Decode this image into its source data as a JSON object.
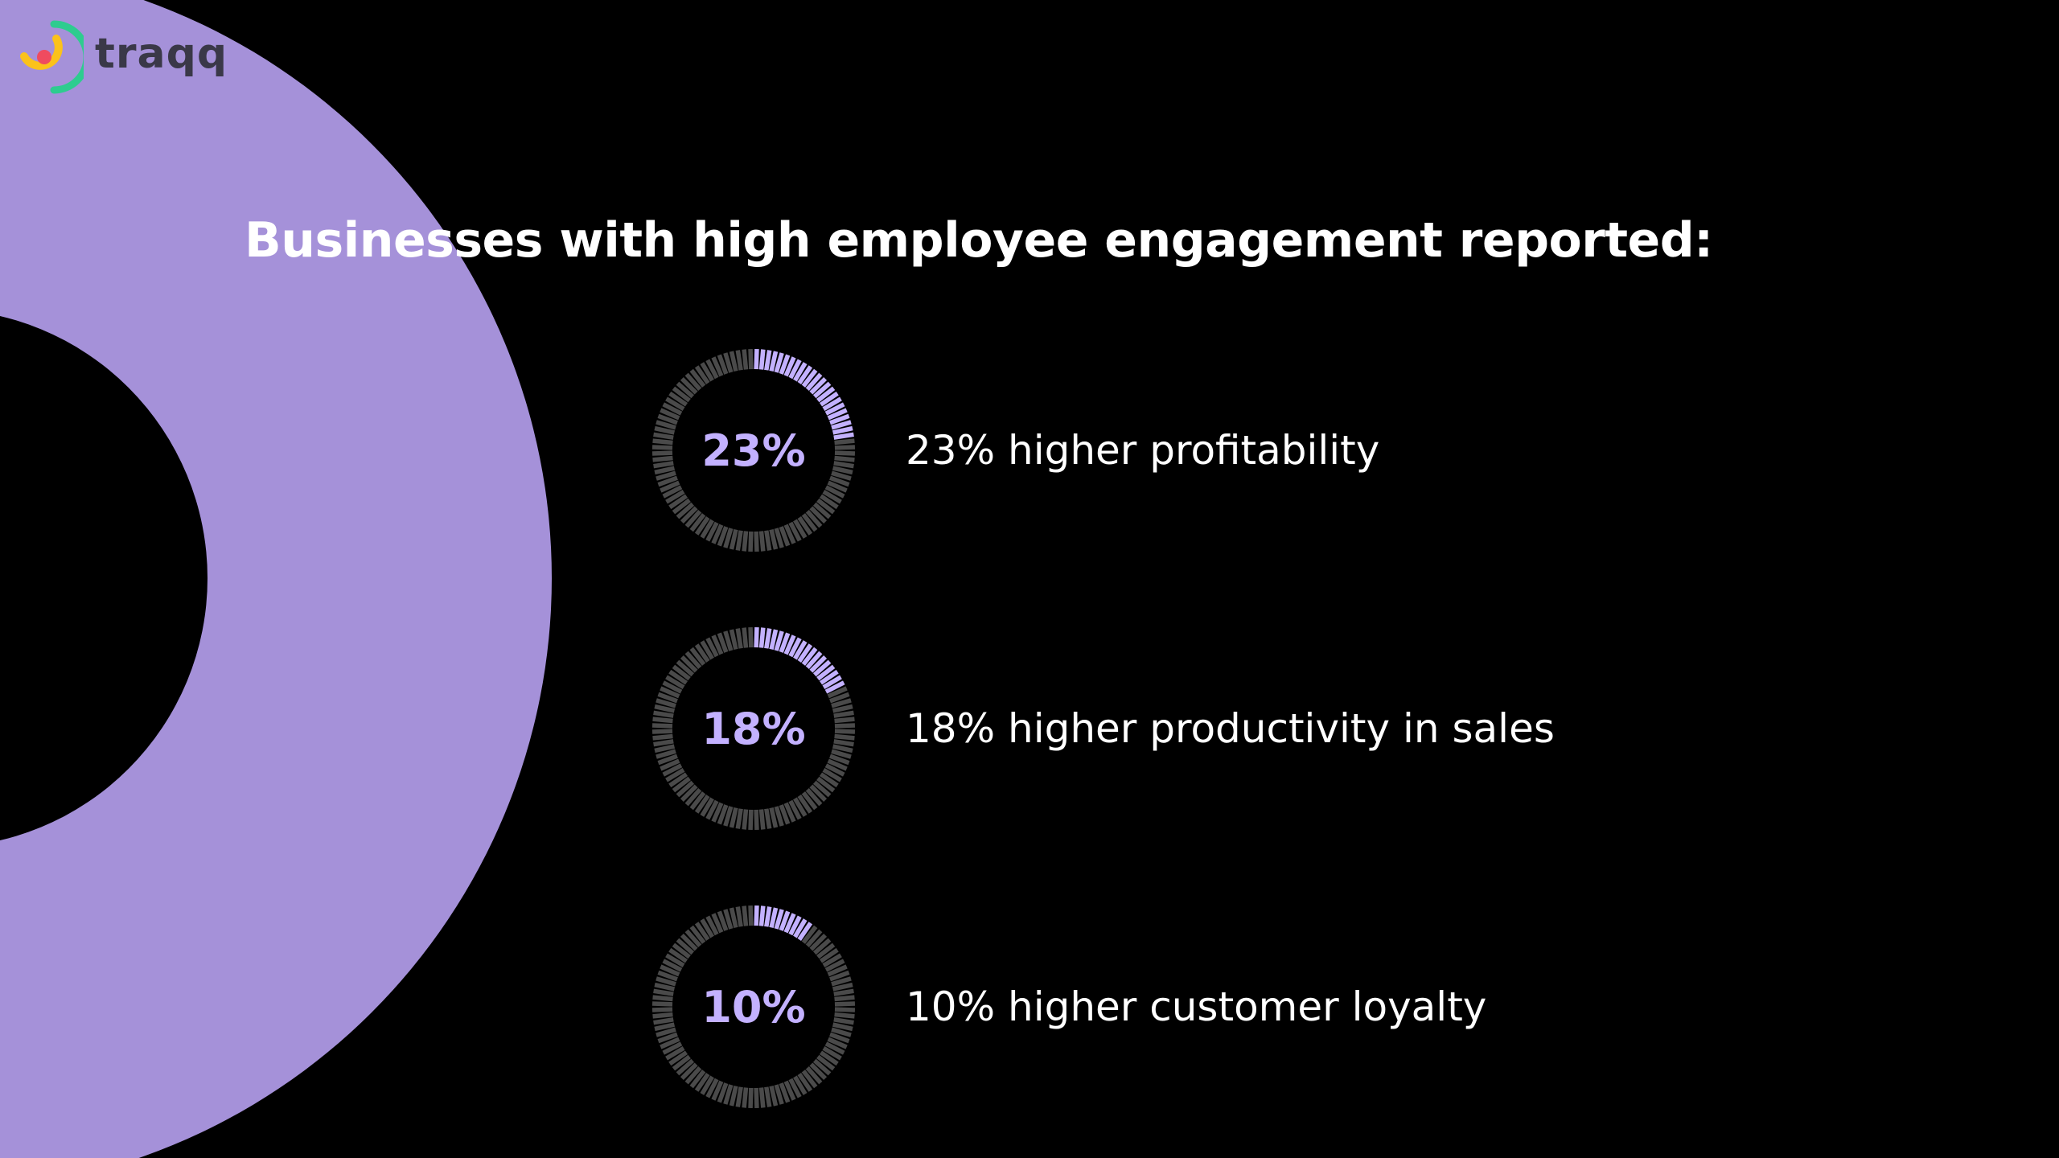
{
  "brand": {
    "name": "traqq"
  },
  "title": "Businesses with high employee engagement reported:",
  "colors": {
    "accent": "#a591d9",
    "gauge_fill": "#c3b1ff",
    "gauge_track": "#4a4a4a",
    "background": "#000000",
    "logo_green": "#2ecc8f",
    "logo_yellow": "#fbc21b",
    "logo_red": "#ef4b5f"
  },
  "stats": [
    {
      "percent_label": "23%",
      "value": 23,
      "description": "23% higher profitability"
    },
    {
      "percent_label": "18%",
      "value": 18,
      "description": "18% higher productivity in sales"
    },
    {
      "percent_label": "10%",
      "value": 10,
      "description": "10% higher customer loyalty"
    }
  ]
}
